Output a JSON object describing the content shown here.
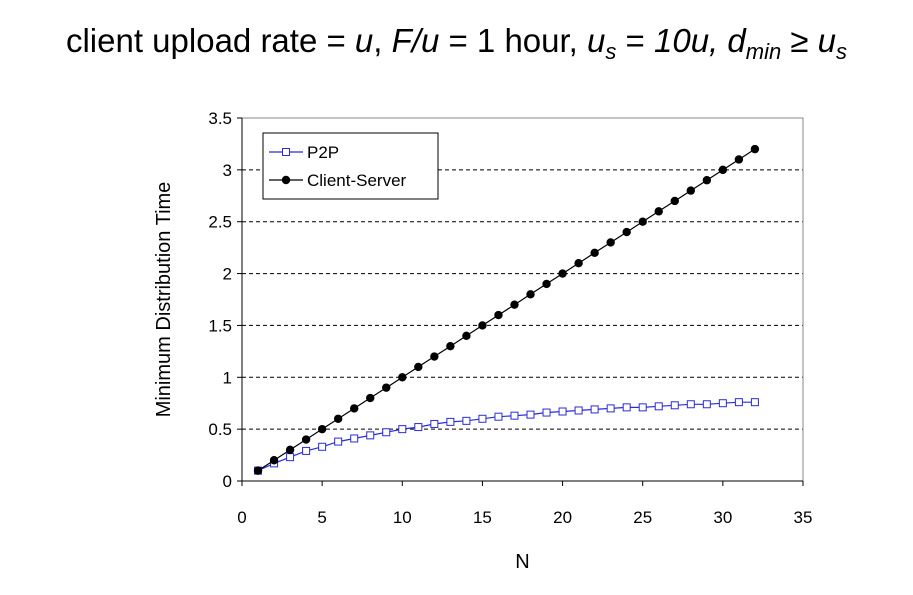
{
  "header": {
    "t1": "client upload rate = ",
    "t2": "u",
    "t3": ",  ",
    "t4": "F/u",
    "t5": " = 1 hour,  ",
    "t6": "u",
    "t7": "s",
    "t8": " = ",
    "t9": "10u,",
    "t10": "  ",
    "t11": "d",
    "t12": "min",
    "t13": " ≥ ",
    "t14": "u",
    "t15": "s"
  },
  "chart_data": {
    "type": "line",
    "title": "client upload rate = u,  F/u = 1 hour,  us = 10u,  dmin ≥ us",
    "xlabel": "N",
    "ylabel": "Minimum Distribution Time",
    "xlim": [
      0,
      35
    ],
    "ylim": [
      0,
      3.5
    ],
    "xticks": [
      "0",
      "5",
      "10",
      "15",
      "20",
      "25",
      "30",
      "35"
    ],
    "yticks": [
      "0",
      "0.5",
      "1",
      "1.5",
      "2",
      "2.5",
      "3",
      "3.5"
    ],
    "grid": "horizontal-dashed",
    "legend_position": "top-left",
    "x": [
      1,
      2,
      3,
      4,
      5,
      6,
      7,
      8,
      9,
      10,
      11,
      12,
      13,
      14,
      15,
      16,
      17,
      18,
      19,
      20,
      21,
      22,
      23,
      24,
      25,
      26,
      27,
      28,
      29,
      30,
      31,
      32
    ],
    "series": [
      {
        "name": "P2P",
        "color": "#2b2bd6",
        "marker": "open-square",
        "values": [
          0.1,
          0.17,
          0.23,
          0.29,
          0.33,
          0.38,
          0.41,
          0.44,
          0.47,
          0.5,
          0.52,
          0.55,
          0.57,
          0.58,
          0.6,
          0.62,
          0.63,
          0.64,
          0.66,
          0.67,
          0.68,
          0.69,
          0.7,
          0.71,
          0.71,
          0.72,
          0.73,
          0.74,
          0.74,
          0.75,
          0.76,
          0.76
        ]
      },
      {
        "name": "Client-Server",
        "color": "#000000",
        "marker": "filled-circle",
        "values": [
          0.1,
          0.2,
          0.3,
          0.4,
          0.5,
          0.6,
          0.7,
          0.8,
          0.9,
          1.0,
          1.1,
          1.2,
          1.3,
          1.4,
          1.5,
          1.6,
          1.7,
          1.8,
          1.9,
          2.0,
          2.1,
          2.2,
          2.3,
          2.4,
          2.5,
          2.6,
          2.7,
          2.8,
          2.9,
          3.0,
          3.1,
          3.2
        ]
      }
    ]
  }
}
